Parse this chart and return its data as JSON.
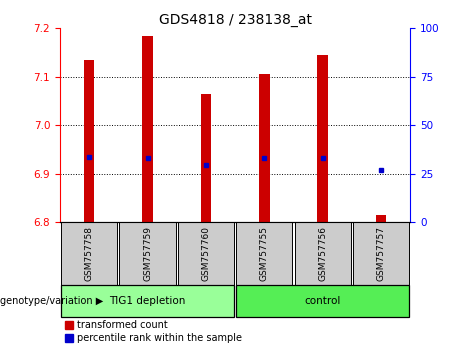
{
  "title": "GDS4818 / 238138_at",
  "samples": [
    "GSM757758",
    "GSM757759",
    "GSM757760",
    "GSM757755",
    "GSM757756",
    "GSM757757"
  ],
  "red_values": [
    7.135,
    7.185,
    7.065,
    7.105,
    7.145,
    6.815
  ],
  "blue_values": [
    6.935,
    6.932,
    6.918,
    6.932,
    6.932,
    6.908
  ],
  "ylim_left": [
    6.8,
    7.2
  ],
  "ylim_right": [
    0,
    100
  ],
  "yticks_left": [
    6.8,
    6.9,
    7.0,
    7.1,
    7.2
  ],
  "yticks_right": [
    0,
    25,
    50,
    75,
    100
  ],
  "grid_yticks": [
    6.9,
    7.0,
    7.1
  ],
  "bar_bottom": 6.8,
  "group1_label": "TIG1 depletion",
  "group2_label": "control",
  "group1_indices": [
    0,
    1,
    2
  ],
  "group2_indices": [
    3,
    4,
    5
  ],
  "legend_red": "transformed count",
  "legend_blue": "percentile rank within the sample",
  "genotype_label": "genotype/variation",
  "red_color": "#cc0000",
  "blue_color": "#0000cc",
  "group1_color": "#99ff99",
  "group2_color": "#55ee55",
  "sample_box_color": "#cccccc",
  "title_fontsize": 10,
  "tick_fontsize": 7.5,
  "sample_fontsize": 6.5,
  "group_fontsize": 7.5,
  "legend_fontsize": 7,
  "genotype_fontsize": 7
}
